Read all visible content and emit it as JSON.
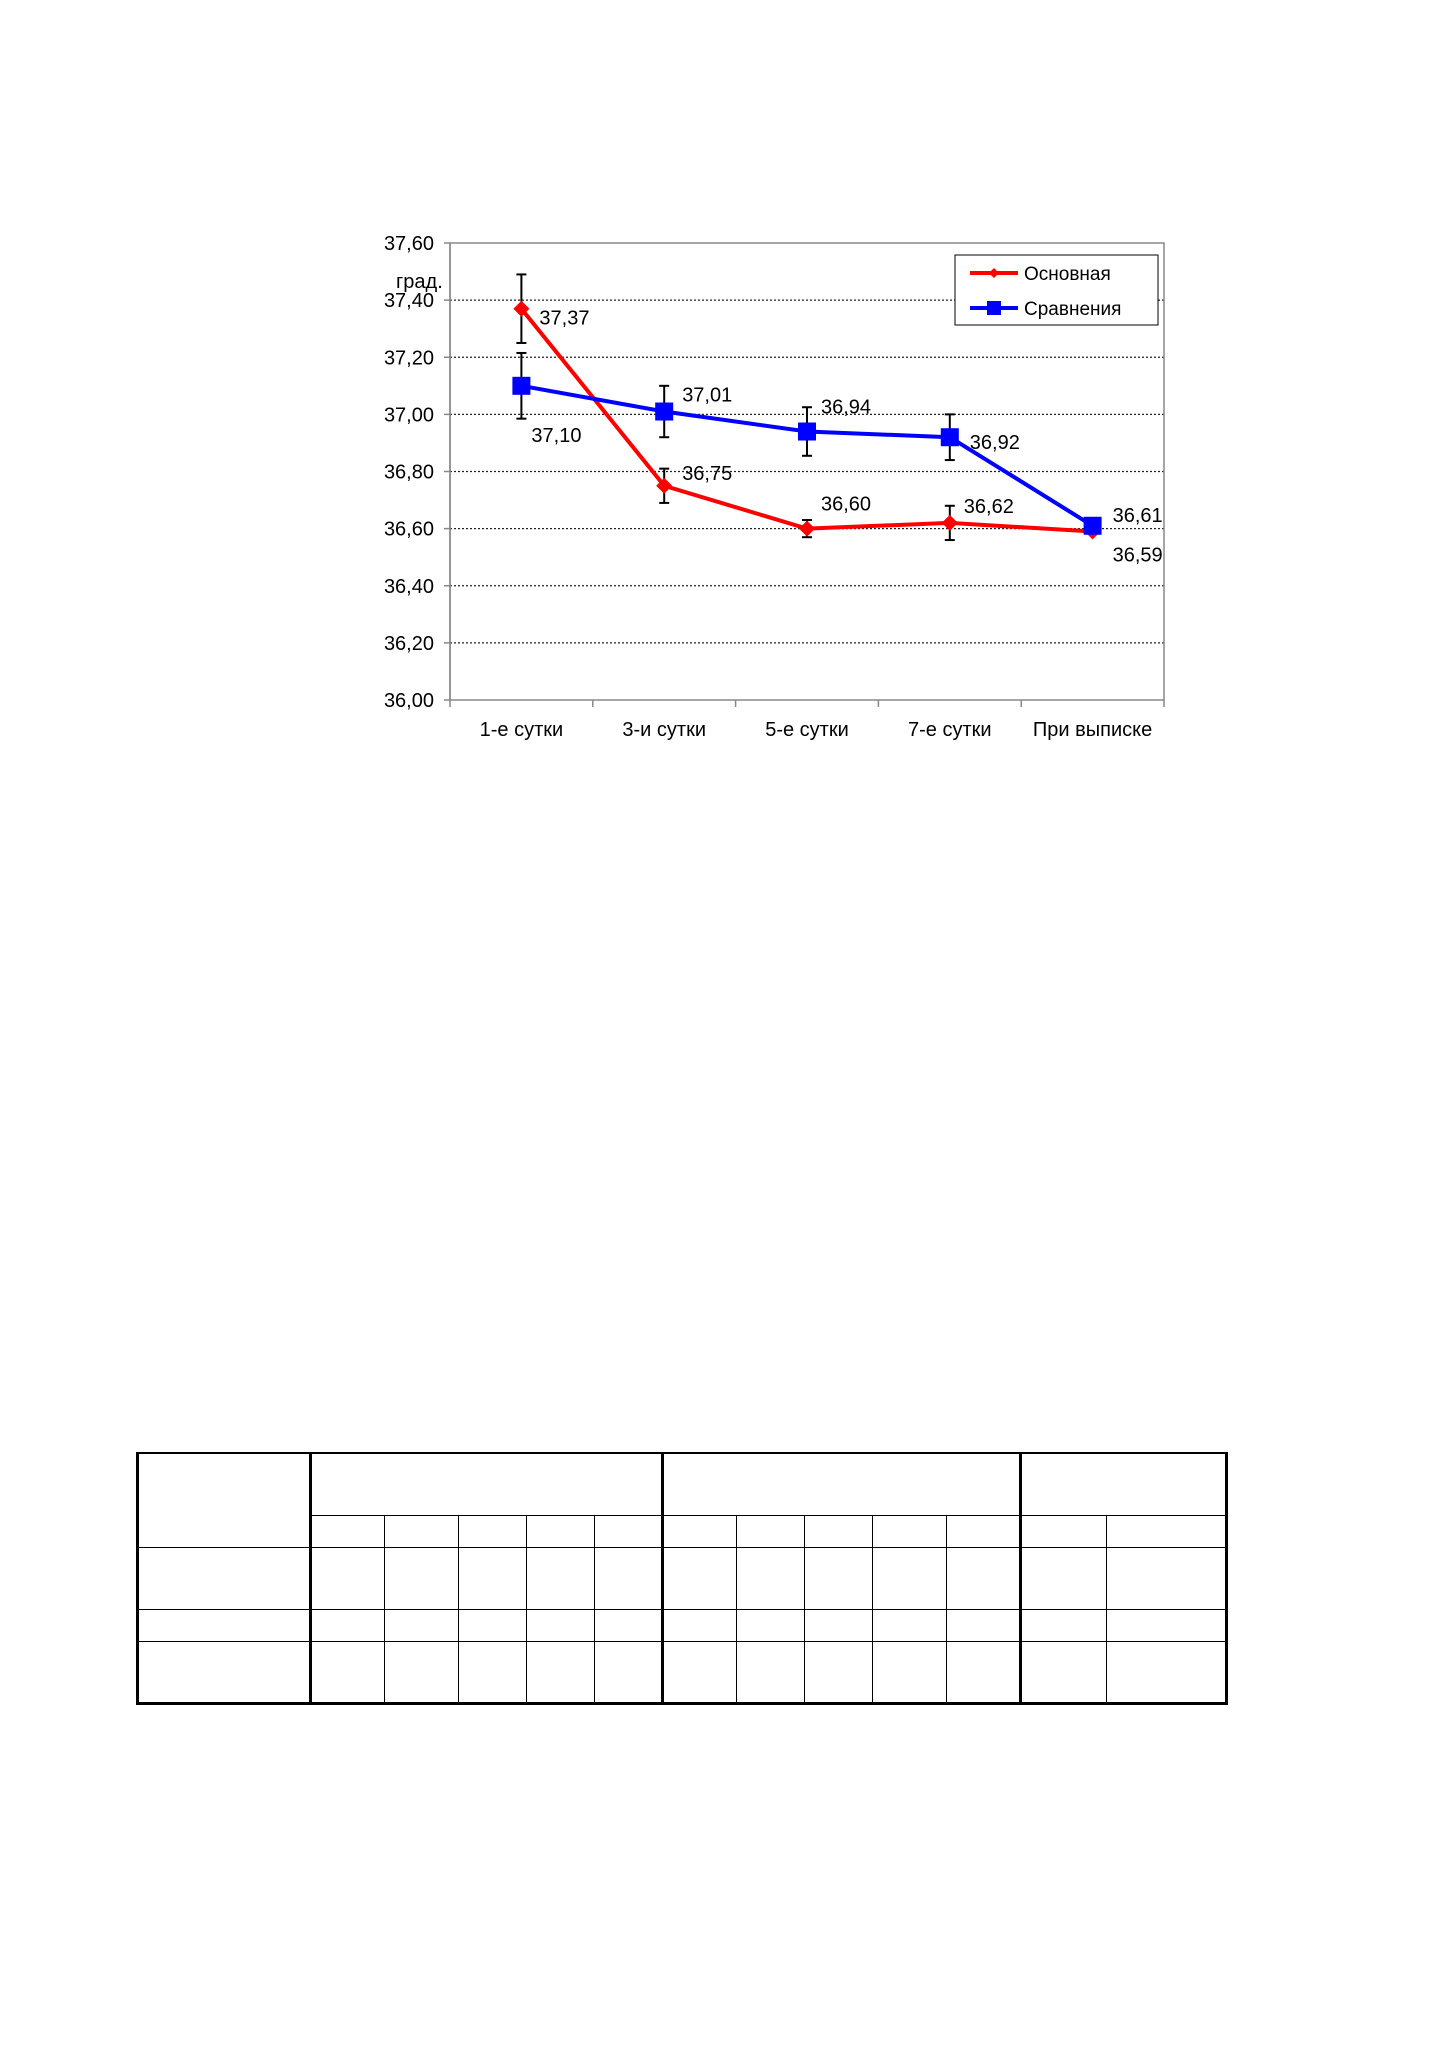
{
  "chart_data": {
    "type": "line",
    "categories": [
      "1-е сутки",
      "3-и сутки",
      "5-е сутки",
      "7-е сутки",
      "При выписке"
    ],
    "ylabel": "град.",
    "ylim": [
      36.0,
      37.6
    ],
    "ytick_step": 0.2,
    "ytick_labels": [
      "36,00",
      "36,20",
      "36,40",
      "36,60",
      "36,80",
      "37,00",
      "37,20",
      "37,40",
      "37,60"
    ],
    "grid": "horizontal dotted",
    "legend_position": "top-right",
    "series": [
      {
        "name": "Основная",
        "color": "#ff0000",
        "marker": "diamond",
        "values": [
          37.37,
          36.75,
          36.6,
          36.62,
          36.59
        ],
        "labels": [
          "37,37",
          "36,75",
          "36,60",
          "36,62",
          "36,59"
        ],
        "error": [
          0.12,
          0.06,
          0.03,
          0.06,
          0.0
        ]
      },
      {
        "name": "Сравнения",
        "color": "#0000ff",
        "marker": "square",
        "values": [
          37.1,
          37.01,
          36.94,
          36.92,
          36.61
        ],
        "labels": [
          "37,10",
          "37,01",
          "36,94",
          "36,92",
          "36,61"
        ],
        "error": [
          0.115,
          0.09,
          0.085,
          0.08,
          0.0
        ]
      }
    ]
  }
}
